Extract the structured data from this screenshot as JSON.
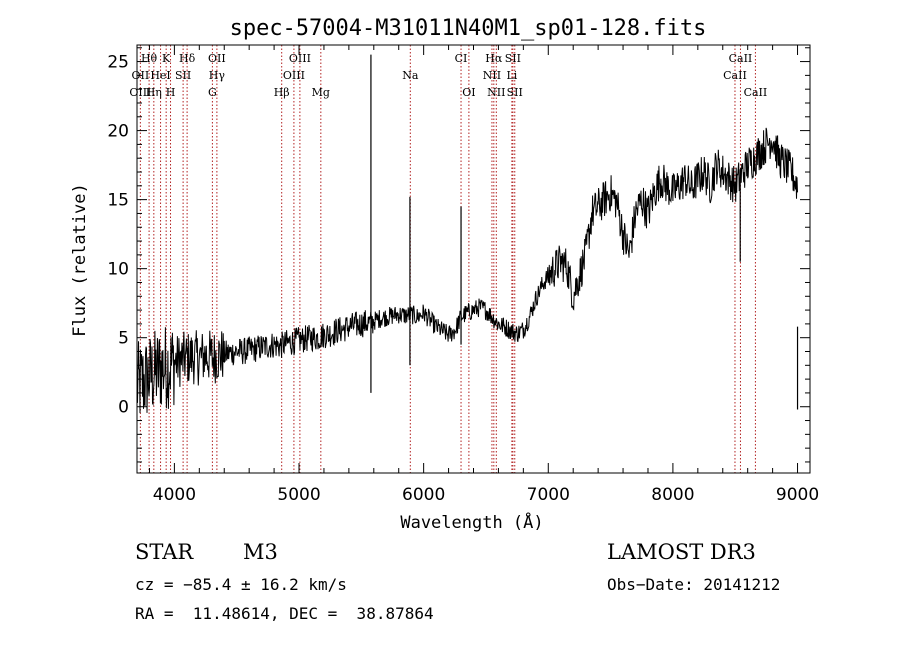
{
  "chart_data": {
    "type": "line",
    "title": "spec-57004-M31011N40M1_sp01-128.fits",
    "xlabel": "Wavelength (Å)",
    "ylabel": "Flux (relative)",
    "xlim": [
      3700,
      9100
    ],
    "ylim": [
      -4.8,
      26.2
    ],
    "xticks": [
      4000,
      5000,
      6000,
      7000,
      8000,
      9000
    ],
    "yticks": [
      0,
      5,
      10,
      15,
      20,
      25
    ],
    "grid": false,
    "series": [
      {
        "name": "flux",
        "x": [
          3700,
          3750,
          3800,
          3850,
          3900,
          3950,
          4000,
          4050,
          4100,
          4150,
          4200,
          4250,
          4300,
          4350,
          4400,
          4450,
          4500,
          4550,
          4600,
          4650,
          4700,
          4750,
          4800,
          4850,
          4900,
          4950,
          5000,
          5050,
          5100,
          5150,
          5200,
          5250,
          5300,
          5350,
          5400,
          5450,
          5500,
          5550,
          5580,
          5600,
          5650,
          5700,
          5750,
          5800,
          5850,
          5900,
          5950,
          6000,
          6050,
          6100,
          6150,
          6200,
          6250,
          6300,
          6350,
          6400,
          6450,
          6500,
          6550,
          6600,
          6650,
          6700,
          6750,
          6800,
          6850,
          6900,
          6950,
          7000,
          7050,
          7100,
          7150,
          7200,
          7250,
          7300,
          7350,
          7400,
          7450,
          7500,
          7550,
          7600,
          7650,
          7700,
          7750,
          7800,
          7850,
          7900,
          7950,
          8000,
          8050,
          8100,
          8150,
          8200,
          8250,
          8300,
          8350,
          8400,
          8450,
          8500,
          8550,
          8600,
          8650,
          8700,
          8750,
          8800,
          8850,
          8900,
          8950,
          9000
        ],
        "y": [
          1.5,
          1.8,
          2.2,
          2.5,
          2.8,
          3.0,
          3.2,
          3.4,
          3.5,
          3.6,
          3.5,
          3.7,
          3.6,
          3.7,
          3.8,
          3.9,
          4.0,
          4.0,
          4.1,
          4.2,
          4.3,
          4.4,
          4.5,
          4.4,
          4.6,
          4.7,
          4.8,
          4.9,
          5.0,
          5.0,
          5.2,
          5.3,
          5.5,
          5.6,
          5.8,
          5.9,
          6.0,
          6.1,
          6.0,
          6.2,
          6.4,
          6.5,
          6.6,
          6.7,
          6.6,
          6.7,
          6.5,
          6.8,
          6.3,
          5.8,
          5.5,
          5.2,
          5.5,
          6.5,
          6.8,
          7.0,
          7.2,
          7.0,
          6.5,
          6.0,
          5.8,
          5.5,
          5.3,
          5.6,
          6.5,
          7.8,
          8.8,
          9.5,
          10.0,
          10.5,
          10.2,
          8.0,
          9.5,
          11.0,
          14.0,
          14.5,
          15.0,
          15.5,
          14.8,
          12.5,
          11.0,
          14.0,
          15.0,
          14.0,
          15.5,
          16.5,
          16.0,
          15.5,
          16.0,
          16.5,
          15.8,
          16.5,
          17.0,
          16.0,
          17.5,
          17.0,
          16.5,
          16.0,
          16.8,
          17.5,
          18.0,
          18.5,
          19.0,
          19.5,
          18.0,
          17.5,
          17.0,
          16.0
        ]
      }
    ],
    "lines": [
      {
        "label": "Hθ",
        "x": 3797,
        "row": 0
      },
      {
        "label": "K",
        "x": 3934,
        "row": 0
      },
      {
        "label": "Hδ",
        "x": 4102,
        "row": 0
      },
      {
        "label": "OII",
        "x": 4341,
        "row": 0
      },
      {
        "label": "OIII",
        "x": 5007,
        "row": 0
      },
      {
        "label": "CI",
        "x": 6300,
        "row": 0
      },
      {
        "label": "Hα",
        "x": 6563,
        "row": 0
      },
      {
        "label": "SII",
        "x": 6716,
        "row": 0
      },
      {
        "label": "CaII",
        "x": 8542,
        "row": 0
      },
      {
        "label": "OII",
        "x": 3727,
        "row": 1
      },
      {
        "label": "HeI",
        "x": 3889,
        "row": 1
      },
      {
        "label": "SII",
        "x": 4070,
        "row": 1
      },
      {
        "label": "Hγ",
        "x": 4341,
        "row": 1
      },
      {
        "label": "OIII",
        "x": 4959,
        "row": 1
      },
      {
        "label": "Na",
        "x": 5893,
        "row": 1
      },
      {
        "label": "NII",
        "x": 6548,
        "row": 1
      },
      {
        "label": "Li",
        "x": 6708,
        "row": 1
      },
      {
        "label": "CaII",
        "x": 8498,
        "row": 1
      },
      {
        "label": "OIII",
        "x": 3727,
        "row": 2
      },
      {
        "label": "Hη",
        "x": 3835,
        "row": 2
      },
      {
        "label": "H",
        "x": 3969,
        "row": 2
      },
      {
        "label": "G",
        "x": 4305,
        "row": 2
      },
      {
        "label": "Hβ",
        "x": 4861,
        "row": 2
      },
      {
        "label": "Mg",
        "x": 5175,
        "row": 2
      },
      {
        "label": "OI",
        "x": 6363,
        "row": 2
      },
      {
        "label": "NII",
        "x": 6583,
        "row": 2
      },
      {
        "label": "SII",
        "x": 6731,
        "row": 2
      },
      {
        "label": "CaII",
        "x": 8662,
        "row": 2
      }
    ]
  },
  "info": {
    "object_class": "STAR",
    "subclass": "M3",
    "survey": "LAMOST DR3",
    "cz": "cz = −85.4 ± 16.2 km/s",
    "obs_date": "Obs−Date: 20141212",
    "radec": "RA =  11.48614, DEC =  38.87864"
  }
}
